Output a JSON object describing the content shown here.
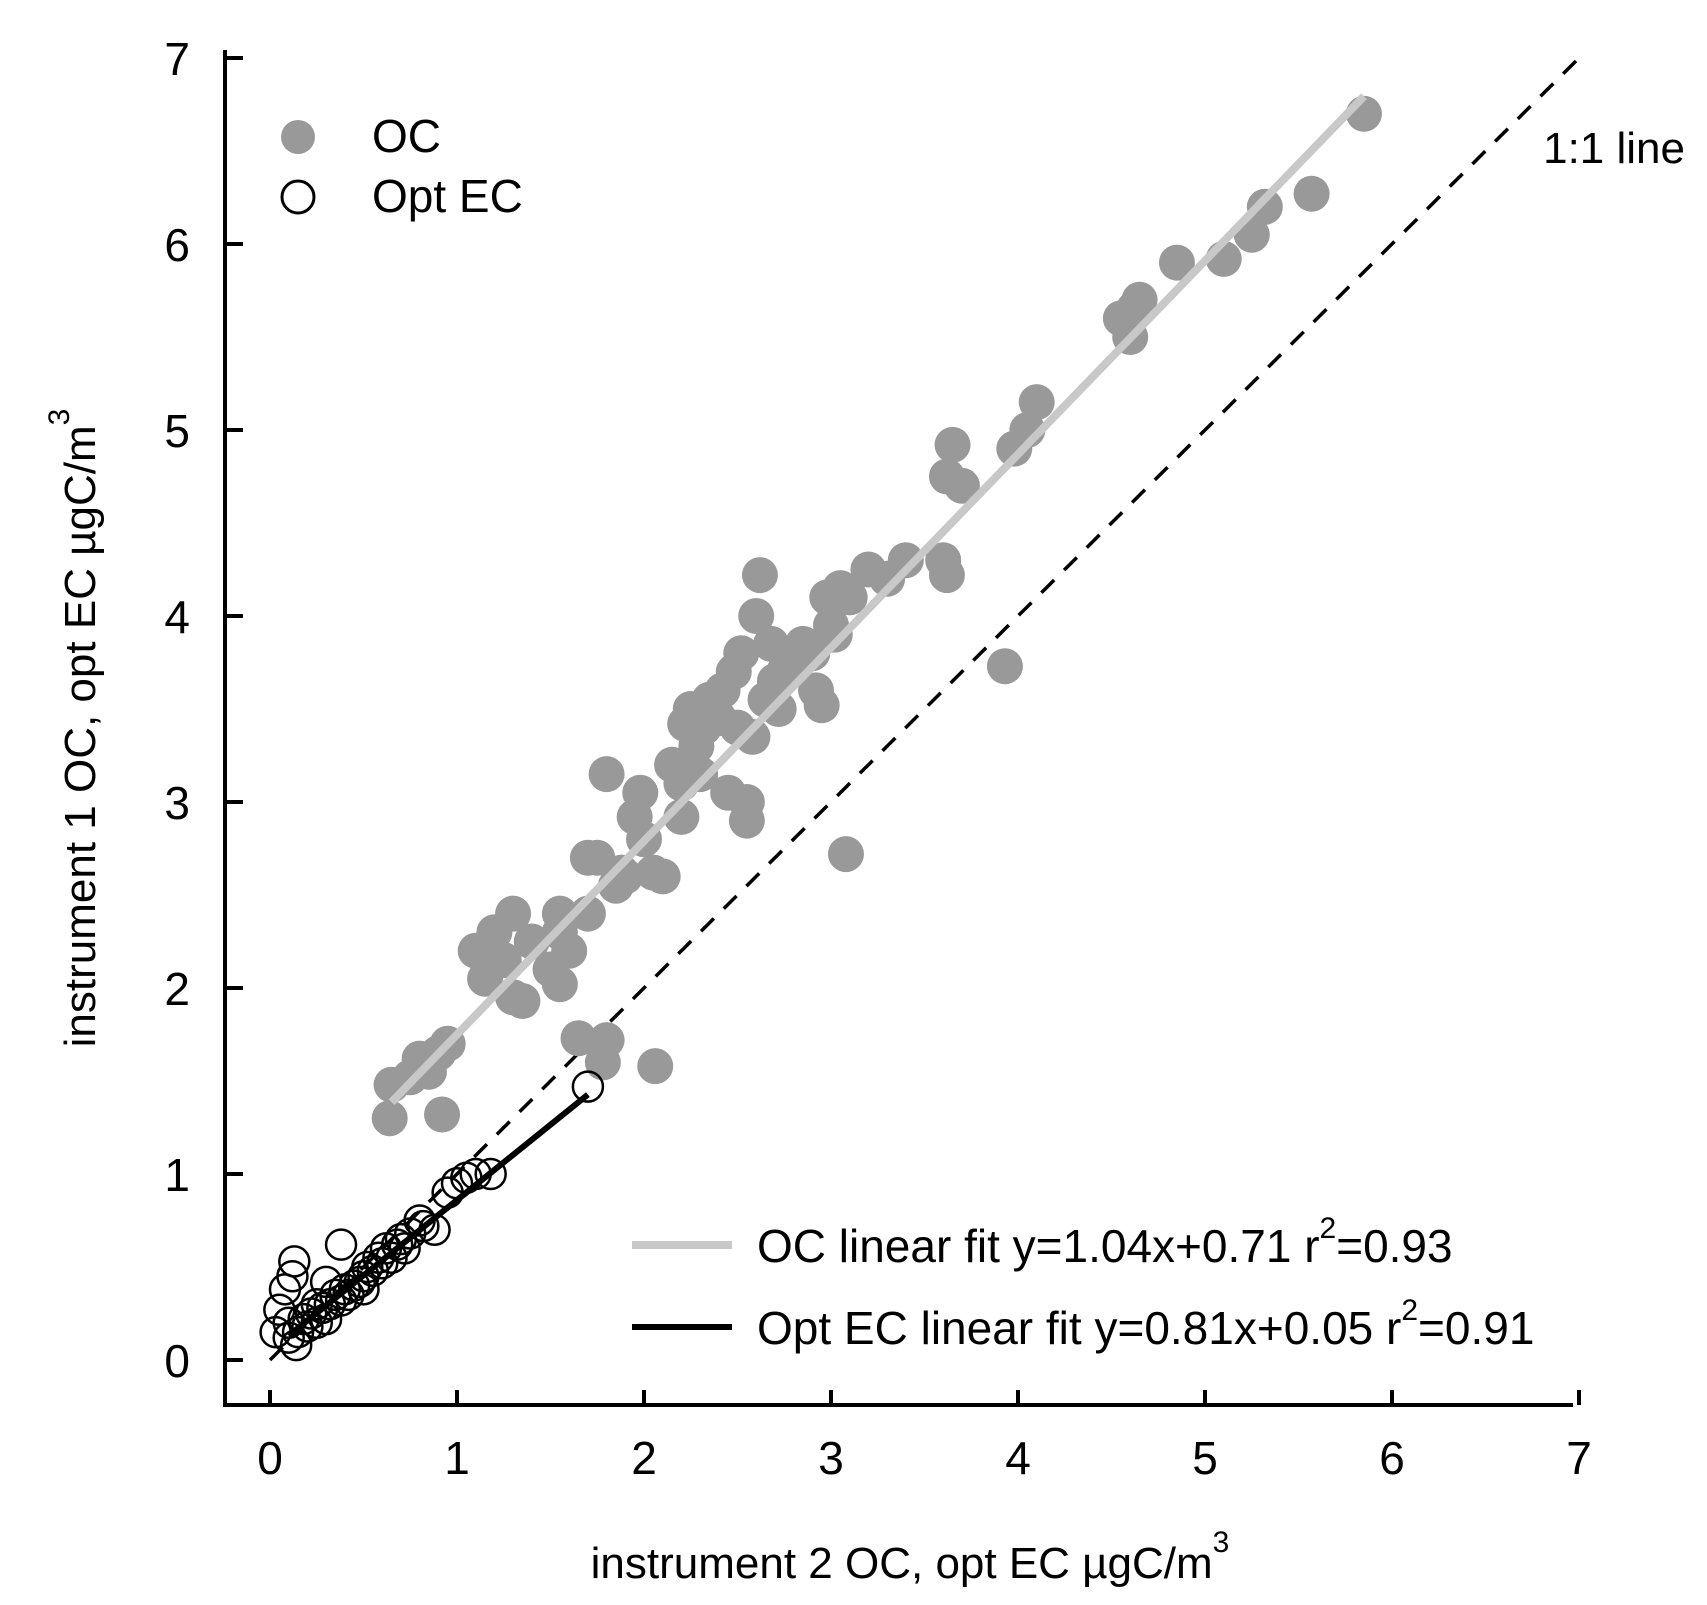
{
  "chart_data": {
    "type": "scatter",
    "xlabel": "instrument 2 OC, opt EC µgC/m",
    "xlabel_sup": "3",
    "ylabel": "instrument 1 OC, opt EC µgC/m",
    "ylabel_sup": "3",
    "xlim": [
      0,
      7
    ],
    "ylim": [
      0,
      7
    ],
    "x_ticks": [
      "0",
      "1",
      "2",
      "3",
      "4",
      "5",
      "6",
      "7"
    ],
    "y_ticks": [
      "0",
      "1",
      "2",
      "3",
      "4",
      "5",
      "6",
      "7"
    ],
    "grid": false,
    "legend_position": "top-left",
    "legend": {
      "oc_label": "OC",
      "ec_label": "Opt EC"
    },
    "identity_line_label": "1:1 line",
    "fits": {
      "oc": {
        "label": "OC linear fit  y=1.04x+0.71  r",
        "r2_sup": "2",
        "r2_value": "=0.93",
        "slope": 1.04,
        "intercept": 0.71,
        "x_range": [
          0.65,
          5.85
        ],
        "color": "#c8c8c8"
      },
      "ec": {
        "label": "Opt EC linear fit y=0.81x+0.05  r",
        "r2_sup": "2",
        "r2_value": "=0.91",
        "slope": 0.81,
        "intercept": 0.05,
        "x_range": [
          0.1,
          1.7
        ],
        "color": "#000000"
      }
    },
    "series": [
      {
        "name": "OC",
        "color": "#999999",
        "marker": "filled-circle",
        "points": [
          [
            0.65,
            1.48
          ],
          [
            0.64,
            1.3
          ],
          [
            0.75,
            1.52
          ],
          [
            0.8,
            1.62
          ],
          [
            0.85,
            1.55
          ],
          [
            0.9,
            1.65
          ],
          [
            0.95,
            1.7
          ],
          [
            0.92,
            1.32
          ],
          [
            1.1,
            2.2
          ],
          [
            1.15,
            2.05
          ],
          [
            1.2,
            2.3
          ],
          [
            1.25,
            2.15
          ],
          [
            1.3,
            2.4
          ],
          [
            1.3,
            1.95
          ],
          [
            1.35,
            1.93
          ],
          [
            1.4,
            2.25
          ],
          [
            1.5,
            2.1
          ],
          [
            1.55,
            2.3
          ],
          [
            1.55,
            2.4
          ],
          [
            1.55,
            2.02
          ],
          [
            1.6,
            2.2
          ],
          [
            1.65,
            1.73
          ],
          [
            1.7,
            2.4
          ],
          [
            1.7,
            2.7
          ],
          [
            1.75,
            2.7
          ],
          [
            1.78,
            1.6
          ],
          [
            1.8,
            1.72
          ],
          [
            1.8,
            3.15
          ],
          [
            1.85,
            2.55
          ],
          [
            1.88,
            2.62
          ],
          [
            1.9,
            2.6
          ],
          [
            1.95,
            2.92
          ],
          [
            1.98,
            3.05
          ],
          [
            2.0,
            2.8
          ],
          [
            2.05,
            2.62
          ],
          [
            2.06,
            1.58
          ],
          [
            2.1,
            2.6
          ],
          [
            2.15,
            3.2
          ],
          [
            2.2,
            3.1
          ],
          [
            2.2,
            2.92
          ],
          [
            2.22,
            3.42
          ],
          [
            2.25,
            3.5
          ],
          [
            2.28,
            3.3
          ],
          [
            2.3,
            3.15
          ],
          [
            2.32,
            3.4
          ],
          [
            2.35,
            3.55
          ],
          [
            2.4,
            3.45
          ],
          [
            2.42,
            3.6
          ],
          [
            2.45,
            3.05
          ],
          [
            2.48,
            3.7
          ],
          [
            2.5,
            3.4
          ],
          [
            2.52,
            3.8
          ],
          [
            2.55,
            3.0
          ],
          [
            2.55,
            2.9
          ],
          [
            2.58,
            3.35
          ],
          [
            2.6,
            4.0
          ],
          [
            2.62,
            4.22
          ],
          [
            2.65,
            3.55
          ],
          [
            2.68,
            3.85
          ],
          [
            2.7,
            3.65
          ],
          [
            2.72,
            3.5
          ],
          [
            2.75,
            3.7
          ],
          [
            2.8,
            3.75
          ],
          [
            2.85,
            3.85
          ],
          [
            2.9,
            3.8
          ],
          [
            2.92,
            3.6
          ],
          [
            2.95,
            3.52
          ],
          [
            2.98,
            4.1
          ],
          [
            3.0,
            3.95
          ],
          [
            3.02,
            3.9
          ],
          [
            3.05,
            4.15
          ],
          [
            3.08,
            2.72
          ],
          [
            3.1,
            4.1
          ],
          [
            3.2,
            4.25
          ],
          [
            3.3,
            4.2
          ],
          [
            3.4,
            4.3
          ],
          [
            3.6,
            4.3
          ],
          [
            3.62,
            4.75
          ],
          [
            3.62,
            4.22
          ],
          [
            3.65,
            4.92
          ],
          [
            3.7,
            4.7
          ],
          [
            3.93,
            3.73
          ],
          [
            3.98,
            4.9
          ],
          [
            4.05,
            5.0
          ],
          [
            4.1,
            5.15
          ],
          [
            4.55,
            5.6
          ],
          [
            4.6,
            5.5
          ],
          [
            4.62,
            5.65
          ],
          [
            4.65,
            5.7
          ],
          [
            4.85,
            5.9
          ],
          [
            5.1,
            5.92
          ],
          [
            5.25,
            6.05
          ],
          [
            5.32,
            6.2
          ],
          [
            5.57,
            6.27
          ],
          [
            5.85,
            6.7
          ]
        ]
      },
      {
        "name": "Opt EC",
        "color": "#000000",
        "marker": "open-circle",
        "points": [
          [
            0.03,
            0.15
          ],
          [
            0.05,
            0.27
          ],
          [
            0.08,
            0.38
          ],
          [
            0.1,
            0.2
          ],
          [
            0.1,
            0.12
          ],
          [
            0.12,
            0.45
          ],
          [
            0.13,
            0.53
          ],
          [
            0.14,
            0.08
          ],
          [
            0.15,
            0.15
          ],
          [
            0.18,
            0.22
          ],
          [
            0.2,
            0.18
          ],
          [
            0.22,
            0.25
          ],
          [
            0.25,
            0.2
          ],
          [
            0.25,
            0.3
          ],
          [
            0.28,
            0.28
          ],
          [
            0.3,
            0.42
          ],
          [
            0.3,
            0.22
          ],
          [
            0.32,
            0.3
          ],
          [
            0.35,
            0.35
          ],
          [
            0.38,
            0.32
          ],
          [
            0.38,
            0.62
          ],
          [
            0.4,
            0.38
          ],
          [
            0.42,
            0.35
          ],
          [
            0.45,
            0.4
          ],
          [
            0.48,
            0.42
          ],
          [
            0.5,
            0.45
          ],
          [
            0.5,
            0.38
          ],
          [
            0.52,
            0.5
          ],
          [
            0.55,
            0.48
          ],
          [
            0.58,
            0.55
          ],
          [
            0.6,
            0.52
          ],
          [
            0.62,
            0.6
          ],
          [
            0.65,
            0.55
          ],
          [
            0.68,
            0.62
          ],
          [
            0.7,
            0.65
          ],
          [
            0.72,
            0.6
          ],
          [
            0.75,
            0.68
          ],
          [
            0.8,
            0.75
          ],
          [
            0.82,
            0.72
          ],
          [
            0.88,
            0.7
          ],
          [
            0.95,
            0.9
          ],
          [
            1.0,
            0.95
          ],
          [
            1.05,
            0.98
          ],
          [
            1.1,
            1.0
          ],
          [
            1.18,
            1.0
          ],
          [
            1.7,
            1.47
          ]
        ]
      }
    ]
  }
}
